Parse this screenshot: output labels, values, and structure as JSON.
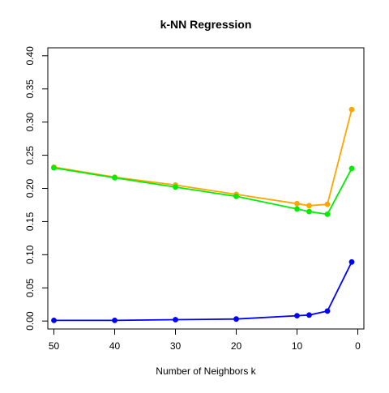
{
  "chart_data": {
    "type": "line",
    "title": "k-NN Regression",
    "xlabel": "Number of Neighbors k",
    "ylabel": "",
    "x_reversed": true,
    "xlim": [
      51,
      -1
    ],
    "ylim": [
      -0.012,
      0.412
    ],
    "x_ticks": [
      50,
      40,
      30,
      20,
      10,
      0
    ],
    "y_ticks": [
      0.0,
      0.05,
      0.1,
      0.15,
      0.2,
      0.25,
      0.3,
      0.35,
      0.4
    ],
    "y_tick_labels": [
      "0.00",
      "0.05",
      "0.10",
      "0.15",
      "0.20",
      "0.25",
      "0.30",
      "0.35",
      "0.40"
    ],
    "x": [
      50,
      40,
      30,
      20,
      10,
      8,
      5,
      1
    ],
    "series": [
      {
        "color": "#ffa500",
        "values": [
          0.232,
          0.217,
          0.205,
          0.191,
          0.177,
          0.174,
          0.176,
          0.319
        ]
      },
      {
        "color": "#00ee00",
        "values": [
          0.231,
          0.216,
          0.202,
          0.188,
          0.169,
          0.165,
          0.161,
          0.23
        ]
      },
      {
        "color": "#0000ff",
        "values": [
          0.001,
          0.001,
          0.002,
          0.003,
          0.008,
          0.009,
          0.015,
          0.089
        ]
      }
    ],
    "grid": false,
    "legend": "none"
  }
}
